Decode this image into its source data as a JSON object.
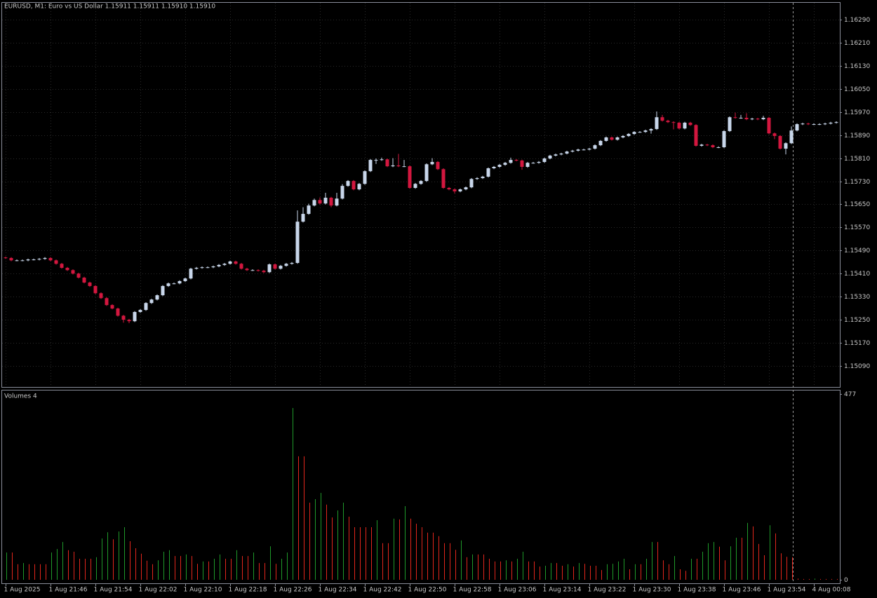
{
  "chart_data": [
    {
      "type": "candlestick",
      "title": "EURUSD, M1:  Euro vs US Dollar  1.15911 1.15911 1.15910 1.15910",
      "categories": [
        "1 Aug 2025",
        null,
        null,
        null,
        null,
        null,
        null,
        null,
        "1 Aug 21:46",
        null,
        null,
        null,
        null,
        null,
        null,
        null,
        "1 Aug 21:54",
        null,
        null,
        null,
        null,
        null,
        null,
        null,
        "1 Aug 22:02",
        null,
        null,
        null,
        null,
        null,
        null,
        null,
        "1 Aug 22:10",
        null,
        null,
        null,
        null,
        null,
        null,
        null,
        "1 Aug 22:18",
        null,
        null,
        null,
        null,
        null,
        null,
        null,
        "1 Aug 22:26",
        null,
        null,
        null,
        null,
        null,
        null,
        null,
        "1 Aug 22:34",
        null,
        null,
        null,
        null,
        null,
        null,
        null,
        "1 Aug 22:42",
        null,
        null,
        null,
        null,
        null,
        null,
        null,
        "1 Aug 22:50",
        null,
        null,
        null,
        null,
        null,
        null,
        null,
        "1 Aug 22:58",
        null,
        null,
        null,
        null,
        null,
        null,
        null,
        "1 Aug 23:06",
        null,
        null,
        null,
        null,
        null,
        null,
        null,
        "1 Aug 23:14",
        null,
        null,
        null,
        null,
        null,
        null,
        null,
        "1 Aug 23:22",
        null,
        null,
        null,
        null,
        null,
        null,
        null,
        "1 Aug 23:30",
        null,
        null,
        null,
        null,
        null,
        null,
        null,
        "1 Aug 23:38",
        null,
        null,
        null,
        null,
        null,
        null,
        null,
        "1 Aug 23:46",
        null,
        null,
        null,
        null,
        null,
        null,
        null,
        "1 Aug 23:54",
        null,
        null,
        null,
        null,
        null,
        null,
        null,
        "4 Aug 00:08",
        null,
        null,
        null,
        null
      ],
      "open": [
        1.15466,
        1.15464,
        1.15456,
        1.15456,
        1.15456,
        1.15459,
        1.15459,
        1.15461,
        1.15464,
        1.15456,
        1.15444,
        1.1543,
        1.15422,
        1.1541,
        1.15396,
        1.15379,
        1.15367,
        1.15342,
        1.15325,
        1.15301,
        1.15289,
        1.15264,
        1.1525,
        1.15245,
        1.15277,
        1.15284,
        1.15308,
        1.1532,
        1.15335,
        1.15367,
        1.15376,
        1.15376,
        1.15384,
        1.15393,
        1.15427,
        1.1543,
        1.15432,
        1.15432,
        1.15435,
        1.1544,
        1.15444,
        1.15452,
        1.15444,
        1.15427,
        1.15422,
        1.15422,
        1.1542,
        1.15415,
        1.15442,
        1.15427,
        1.15437,
        1.15444,
        1.15447,
        1.1559,
        1.15617,
        1.15646,
        1.15665,
        1.15653,
        1.15673,
        1.15646,
        1.1567,
        1.15714,
        1.15731,
        1.15702,
        1.15721,
        1.15765,
        1.15804,
        1.15804,
        1.15806,
        1.15782,
        1.15785,
        1.15782,
        1.15782,
        1.15707,
        1.15721,
        1.15731,
        1.15789,
        1.15797,
        1.15772,
        1.15707,
        1.15702,
        1.15695,
        1.15702,
        1.15709,
        1.15738,
        1.15741,
        1.15746,
        1.15775,
        1.1578,
        1.15787,
        1.15794,
        1.15804,
        1.15802,
        1.1578,
        1.15794,
        1.15794,
        1.15797,
        1.15809,
        1.15819,
        1.15823,
        1.15826,
        1.15833,
        1.15836,
        1.1584,
        1.1584,
        1.15843,
        1.15855,
        1.1587,
        1.15882,
        1.15874,
        1.15882,
        1.15887,
        1.15894,
        1.15901,
        1.15901,
        1.15906,
        1.15911,
        1.15952,
        1.1594,
        1.15935,
        1.15933,
        1.15913,
        1.15933,
        1.15925,
        1.15853,
        1.15857,
        1.15855,
        1.15848,
        1.15848,
        1.15904,
        1.15952,
        1.1595,
        1.1595,
        1.15945,
        1.15947,
        1.15945,
        1.1595,
        1.15896,
        1.15887,
        1.15843,
        1.15862,
        1.15906,
        1.15928,
        1.1593,
        1.15928,
        1.15928,
        1.15928,
        1.1593,
        1.15933
      ],
      "high": [
        1.15469,
        1.15467,
        1.15459,
        1.15459,
        1.15462,
        1.15462,
        1.15464,
        1.15467,
        1.15467,
        1.15459,
        1.15447,
        1.15433,
        1.15425,
        1.15413,
        1.15399,
        1.15382,
        1.1537,
        1.15345,
        1.15328,
        1.15304,
        1.15292,
        1.15267,
        1.15253,
        1.1528,
        1.15287,
        1.15311,
        1.15323,
        1.15338,
        1.1537,
        1.15379,
        1.15379,
        1.15387,
        1.15396,
        1.1543,
        1.15433,
        1.15435,
        1.15435,
        1.15438,
        1.15443,
        1.15447,
        1.15455,
        1.15455,
        1.15447,
        1.1543,
        1.15425,
        1.15425,
        1.15423,
        1.15445,
        1.15445,
        1.1544,
        1.15447,
        1.1545,
        1.15629,
        1.1564,
        1.15652,
        1.1567,
        1.15674,
        1.1569,
        1.15676,
        1.1569,
        1.1572,
        1.15734,
        1.15734,
        1.15724,
        1.15768,
        1.15807,
        1.15809,
        1.15812,
        1.15809,
        1.1581,
        1.15825,
        1.15804,
        1.15785,
        1.15724,
        1.15734,
        1.15792,
        1.1581,
        1.158,
        1.15775,
        1.1571,
        1.15705,
        1.15705,
        1.15712,
        1.15741,
        1.15744,
        1.15749,
        1.15778,
        1.15783,
        1.1579,
        1.15797,
        1.15812,
        1.15807,
        1.15805,
        1.15797,
        1.15797,
        1.158,
        1.15812,
        1.15822,
        1.15826,
        1.15829,
        1.15836,
        1.15839,
        1.15843,
        1.15843,
        1.15846,
        1.15858,
        1.15873,
        1.15885,
        1.15885,
        1.15885,
        1.1589,
        1.15897,
        1.15904,
        1.15904,
        1.15909,
        1.15914,
        1.15972,
        1.1596,
        1.15943,
        1.15938,
        1.15936,
        1.15936,
        1.15936,
        1.15928,
        1.1586,
        1.1586,
        1.15858,
        1.15851,
        1.15907,
        1.15955,
        1.15968,
        1.1596,
        1.15966,
        1.1595,
        1.1595,
        1.15957,
        1.15953,
        1.15899,
        1.1589,
        1.15865,
        1.1592,
        1.15931,
        1.15933,
        1.15933,
        1.15931,
        1.15931,
        1.15933,
        1.15936,
        1.15938
      ],
      "low": [
        1.15461,
        1.15453,
        1.15453,
        1.15453,
        1.15453,
        1.15456,
        1.15456,
        1.15458,
        1.15453,
        1.15441,
        1.15427,
        1.15419,
        1.15407,
        1.15393,
        1.15376,
        1.15364,
        1.15339,
        1.15322,
        1.15298,
        1.15286,
        1.15261,
        1.1524,
        1.15238,
        1.15242,
        1.15274,
        1.15281,
        1.15305,
        1.15317,
        1.15332,
        1.15364,
        1.15373,
        1.15373,
        1.15381,
        1.1539,
        1.15424,
        1.15427,
        1.15429,
        1.15429,
        1.15432,
        1.15437,
        1.15441,
        1.15441,
        1.15424,
        1.15419,
        1.15419,
        1.15417,
        1.15412,
        1.15412,
        1.15424,
        1.15424,
        1.15434,
        1.15441,
        1.15444,
        1.15587,
        1.15614,
        1.15643,
        1.1565,
        1.1565,
        1.1564,
        1.15643,
        1.15667,
        1.15711,
        1.15699,
        1.15699,
        1.15718,
        1.15762,
        1.1579,
        1.15801,
        1.15779,
        1.15779,
        1.15779,
        1.15779,
        1.15704,
        1.15704,
        1.15718,
        1.15728,
        1.15786,
        1.15769,
        1.15704,
        1.15699,
        1.15688,
        1.15692,
        1.15699,
        1.15706,
        1.15735,
        1.15738,
        1.15743,
        1.15772,
        1.15777,
        1.15784,
        1.15791,
        1.15799,
        1.1577,
        1.15777,
        1.15791,
        1.15791,
        1.15794,
        1.15806,
        1.15816,
        1.1582,
        1.15823,
        1.1583,
        1.15833,
        1.15837,
        1.15837,
        1.1584,
        1.15852,
        1.15867,
        1.15871,
        1.15871,
        1.15879,
        1.15884,
        1.15891,
        1.15898,
        1.15898,
        1.15895,
        1.15908,
        1.15937,
        1.15932,
        1.1591,
        1.1591,
        1.1591,
        1.15922,
        1.1585,
        1.1585,
        1.15852,
        1.15845,
        1.15845,
        1.15845,
        1.15901,
        1.15947,
        1.15947,
        1.15942,
        1.15942,
        1.15942,
        1.15942,
        1.15893,
        1.15876,
        1.1584,
        1.15823,
        1.15859,
        1.15903,
        1.15925,
        1.15925,
        1.15925,
        1.15925,
        1.15925,
        1.15927,
        1.1593
      ],
      "close": [
        1.15464,
        1.15456,
        1.15456,
        1.15456,
        1.15459,
        1.15459,
        1.15461,
        1.15464,
        1.15456,
        1.15444,
        1.1543,
        1.15422,
        1.1541,
        1.15396,
        1.15379,
        1.15367,
        1.15342,
        1.15325,
        1.15301,
        1.15289,
        1.15264,
        1.1525,
        1.15245,
        1.15277,
        1.15284,
        1.15308,
        1.1532,
        1.15335,
        1.15367,
        1.15376,
        1.15376,
        1.15384,
        1.15393,
        1.15427,
        1.1543,
        1.15432,
        1.15432,
        1.15435,
        1.1544,
        1.15444,
        1.15452,
        1.15444,
        1.15427,
        1.15422,
        1.15422,
        1.1542,
        1.15415,
        1.15442,
        1.15427,
        1.15437,
        1.15444,
        1.15447,
        1.1559,
        1.15617,
        1.15646,
        1.15665,
        1.15653,
        1.15673,
        1.15646,
        1.1567,
        1.15714,
        1.15731,
        1.15702,
        1.15721,
        1.15765,
        1.15804,
        1.15804,
        1.15806,
        1.15782,
        1.15785,
        1.15782,
        1.15782,
        1.15707,
        1.15721,
        1.15731,
        1.15789,
        1.15797,
        1.15772,
        1.15707,
        1.15702,
        1.15695,
        1.15702,
        1.15709,
        1.15738,
        1.15741,
        1.15746,
        1.15775,
        1.1578,
        1.15787,
        1.15794,
        1.15804,
        1.15802,
        1.1578,
        1.15794,
        1.15794,
        1.15797,
        1.15809,
        1.15819,
        1.15823,
        1.15826,
        1.15833,
        1.15836,
        1.1584,
        1.1584,
        1.15843,
        1.15855,
        1.1587,
        1.15882,
        1.15874,
        1.15882,
        1.15887,
        1.15894,
        1.15901,
        1.15901,
        1.15906,
        1.15911,
        1.15952,
        1.1594,
        1.15935,
        1.15933,
        1.15913,
        1.15933,
        1.15925,
        1.15853,
        1.15857,
        1.15855,
        1.15848,
        1.15848,
        1.15904,
        1.15952,
        1.1595,
        1.1595,
        1.15945,
        1.15947,
        1.15945,
        1.1595,
        1.15896,
        1.15887,
        1.15843,
        1.15862,
        1.15906,
        1.15928,
        1.1593,
        1.15928,
        1.15928,
        1.15928,
        1.1593,
        1.15933,
        1.15935
      ],
      "up_color": "#c8d6ea",
      "down_color": "#d3173f",
      "ylim": [
        1.15017,
        1.16351
      ],
      "yticks": [
        {
          "value": 1.1629,
          "label": "1.16290"
        },
        {
          "value": 1.1621,
          "label": "1.16210"
        },
        {
          "value": 1.1613,
          "label": "1.16130"
        },
        {
          "value": 1.1605,
          "label": "1.16050"
        },
        {
          "value": 1.1597,
          "label": "1.15970"
        },
        {
          "value": 1.1589,
          "label": "1.15890"
        },
        {
          "value": 1.1581,
          "label": "1.15810"
        },
        {
          "value": 1.1573,
          "label": "1.15730"
        },
        {
          "value": 1.1565,
          "label": "1.15650"
        },
        {
          "value": 1.1557,
          "label": "1.15570"
        },
        {
          "value": 1.1549,
          "label": "1.15490"
        },
        {
          "value": 1.1541,
          "label": "1.15410"
        },
        {
          "value": 1.1533,
          "label": "1.15330"
        },
        {
          "value": 1.1525,
          "label": "1.15250"
        },
        {
          "value": 1.1517,
          "label": "1.15170"
        },
        {
          "value": 1.1509,
          "label": "1.15090"
        }
      ],
      "grid": true
    },
    {
      "type": "volume",
      "title": "Volumes 4",
      "values": [
        70,
        70,
        40,
        43,
        40,
        40,
        40,
        40,
        70,
        79,
        97,
        76,
        72,
        54,
        54,
        54,
        58,
        106,
        122,
        104,
        124,
        135,
        99,
        81,
        67,
        49,
        40,
        50,
        72,
        76,
        61,
        61,
        65,
        61,
        41,
        47,
        47,
        54,
        65,
        54,
        54,
        76,
        61,
        61,
        70,
        43,
        43,
        86,
        41,
        54,
        70,
        441,
        317,
        317,
        198,
        207,
        223,
        193,
        160,
        178,
        198,
        162,
        135,
        135,
        135,
        135,
        153,
        94,
        94,
        157,
        155,
        189,
        157,
        144,
        135,
        121,
        121,
        112,
        94,
        94,
        77,
        101,
        58,
        65,
        65,
        65,
        54,
        47,
        47,
        50,
        47,
        54,
        72,
        47,
        47,
        34,
        36,
        43,
        43,
        36,
        40,
        34,
        43,
        41,
        36,
        36,
        25,
        40,
        41,
        47,
        54,
        27,
        40,
        40,
        54,
        97,
        97,
        50,
        40,
        61,
        27,
        23,
        54,
        54,
        72,
        94,
        97,
        85,
        50,
        86,
        108,
        108,
        146,
        137,
        92,
        63,
        140,
        119,
        68,
        59,
        58,
        3,
        2,
        2,
        3,
        2,
        2,
        2,
        2
      ],
      "up_color": "#1f9a2a",
      "down_color": "#e3261c",
      "ylim": [
        -9,
        486
      ],
      "yticks": [
        477,
        0
      ]
    }
  ]
}
